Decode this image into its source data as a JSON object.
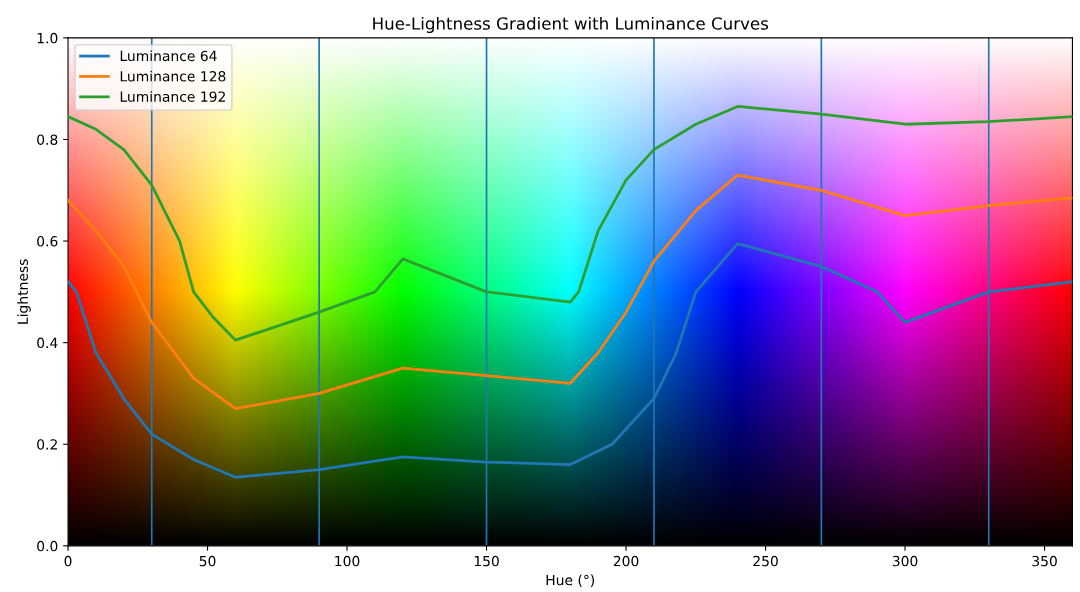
{
  "chart_data": {
    "type": "line",
    "title": "Hue-Lightness Gradient with Luminance Curves",
    "xlabel": "Hue (°)",
    "ylabel": "Lightness",
    "series": [
      {
        "name": "Luminance 64",
        "color": "#1f77b4",
        "x": [
          0,
          3,
          10,
          20,
          30,
          45,
          60,
          90,
          120,
          150,
          180,
          195,
          210,
          218,
          225,
          240,
          270,
          290,
          300,
          330,
          360
        ],
        "values": [
          0.52,
          0.5,
          0.38,
          0.29,
          0.22,
          0.17,
          0.135,
          0.15,
          0.175,
          0.165,
          0.16,
          0.2,
          0.29,
          0.38,
          0.5,
          0.595,
          0.55,
          0.5,
          0.44,
          0.5,
          0.52
        ]
      },
      {
        "name": "Luminance 128",
        "color": "#ff7f0e",
        "x": [
          0,
          10,
          20,
          30,
          45,
          60,
          90,
          120,
          150,
          180,
          190,
          200,
          210,
          225,
          240,
          270,
          300,
          330,
          360
        ],
        "values": [
          0.68,
          0.62,
          0.55,
          0.44,
          0.33,
          0.27,
          0.3,
          0.35,
          0.335,
          0.32,
          0.38,
          0.46,
          0.56,
          0.66,
          0.73,
          0.7,
          0.65,
          0.67,
          0.685
        ]
      },
      {
        "name": "Luminance 192",
        "color": "#2ca02c",
        "x": [
          0,
          10,
          20,
          30,
          40,
          45,
          52,
          60,
          90,
          110,
          120,
          150,
          180,
          183,
          190,
          200,
          210,
          225,
          240,
          270,
          300,
          330,
          360
        ],
        "values": [
          0.845,
          0.82,
          0.78,
          0.71,
          0.6,
          0.5,
          0.45,
          0.405,
          0.46,
          0.5,
          0.565,
          0.5,
          0.48,
          0.5,
          0.62,
          0.72,
          0.78,
          0.83,
          0.865,
          0.85,
          0.83,
          0.835,
          0.845
        ]
      }
    ],
    "ref_lines": [
      {
        "axis": "x",
        "value": 30,
        "color": "#1f77b4"
      },
      {
        "axis": "x",
        "value": 90,
        "color": "#1f77b4"
      },
      {
        "axis": "x",
        "value": 150,
        "color": "#1f77b4"
      },
      {
        "axis": "x",
        "value": 210,
        "color": "#1f77b4"
      },
      {
        "axis": "x",
        "value": 270,
        "color": "#1f77b4"
      },
      {
        "axis": "x",
        "value": 330,
        "color": "#1f77b4"
      }
    ],
    "xlim": [
      0,
      360
    ],
    "xticks": [
      0,
      50,
      100,
      150,
      200,
      250,
      300,
      350
    ],
    "ylim": [
      0,
      1
    ],
    "yticks": [
      {
        "value": 0,
        "label": "0.0"
      },
      {
        "value": 0.2,
        "label": "0.2"
      },
      {
        "value": 0.4,
        "label": "0.4"
      },
      {
        "value": 0.6,
        "label": "0.6"
      },
      {
        "value": 0.8,
        "label": "0.8"
      },
      {
        "value": 1,
        "label": "1.0"
      }
    ],
    "legend": "top left",
    "grid": false,
    "marker": "none",
    "line_style": "solid"
  }
}
